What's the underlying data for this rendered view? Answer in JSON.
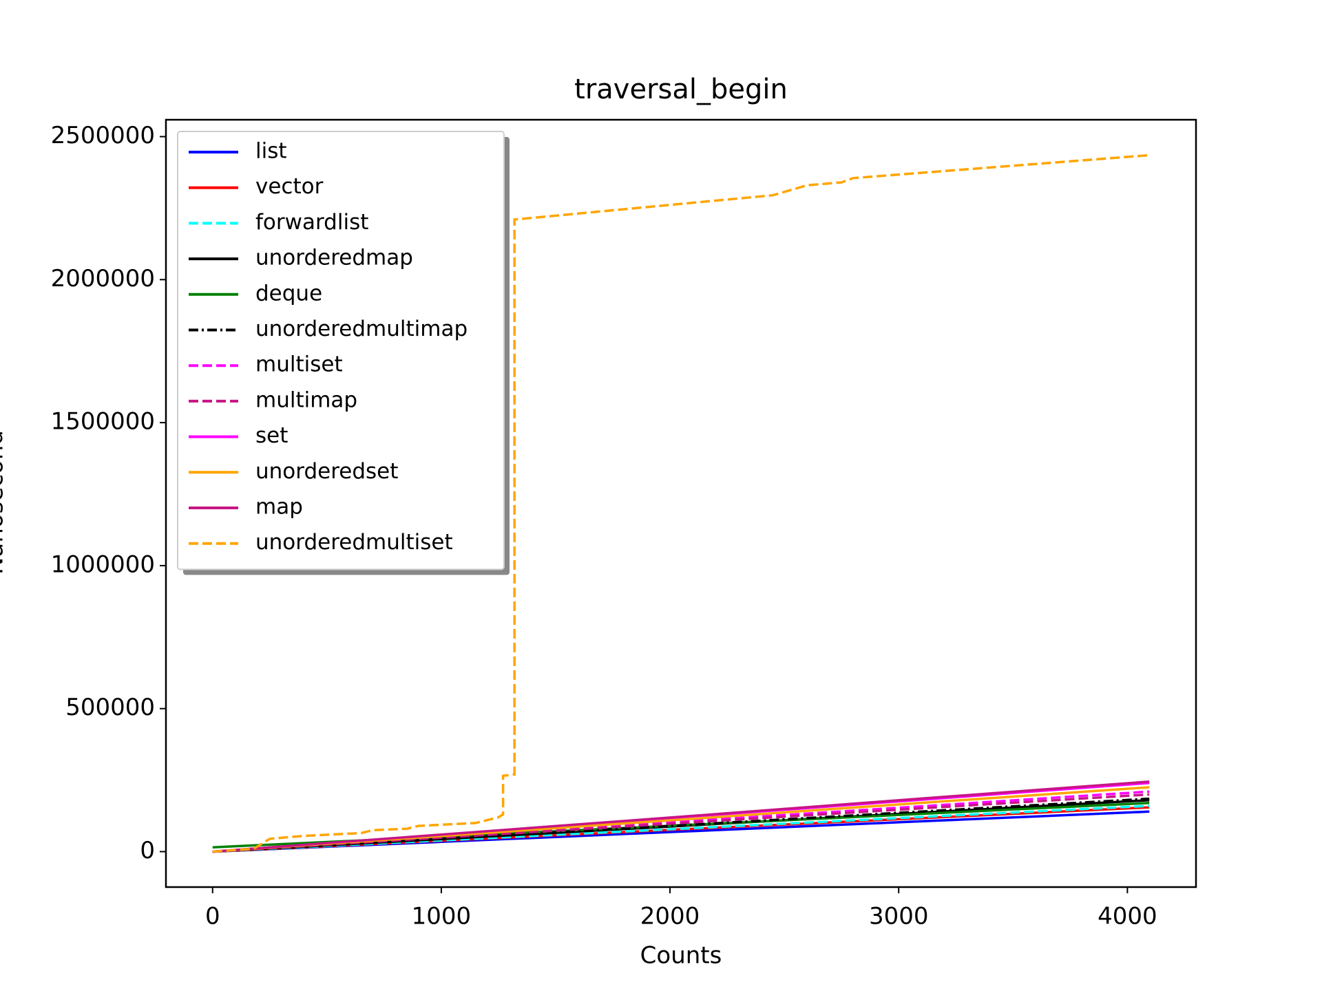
{
  "chart_data": {
    "type": "line",
    "title": "traversal_begin",
    "x_label": "Counts",
    "y_label": "Nanosecond",
    "xlim": [
      -204,
      4300
    ],
    "ylim": [
      -124000,
      2559000
    ],
    "xticks": [
      0,
      1000,
      2000,
      3000,
      4000
    ],
    "yticks": [
      0,
      500000,
      1000000,
      1500000,
      2000000,
      2500000
    ],
    "legend": "upper left",
    "series": [
      {
        "name": "list",
        "color": "#0000ff",
        "linestyle": "solid",
        "x": [
          0,
          1024,
          2048,
          3072,
          4096
        ],
        "values": [
          0,
          35000,
          70000,
          105000,
          140000
        ]
      },
      {
        "name": "vector",
        "color": "#ff0000",
        "linestyle": "solid",
        "x": [
          0,
          1024,
          2048,
          3072,
          4096
        ],
        "values": [
          0,
          39000,
          78000,
          116000,
          155000
        ]
      },
      {
        "name": "forwardlist",
        "color": "#00ffff",
        "linestyle": "dashed",
        "x": [
          0,
          1024,
          2048,
          3072,
          4096
        ],
        "values": [
          0,
          40000,
          80000,
          120000,
          160000
        ]
      },
      {
        "name": "unorderedmap",
        "color": "#000000",
        "linestyle": "solid",
        "x": [
          0,
          1024,
          2048,
          3072,
          4096
        ],
        "values": [
          0,
          45000,
          90000,
          135000,
          180000
        ]
      },
      {
        "name": "deque",
        "color": "#008000",
        "linestyle": "solid",
        "x": [
          0,
          1024,
          2048,
          3072,
          4096
        ],
        "values": [
          15000,
          53000,
          92000,
          131000,
          170000
        ]
      },
      {
        "name": "unorderedmultimap",
        "color": "#000000",
        "linestyle": "dashdot",
        "x": [
          0,
          1024,
          2048,
          3072,
          4096
        ],
        "values": [
          0,
          46000,
          92000,
          139000,
          185000
        ]
      },
      {
        "name": "multiset",
        "color": "#ff00ff",
        "linestyle": "dashed",
        "x": [
          0,
          1024,
          2048,
          3072,
          4096
        ],
        "values": [
          0,
          52000,
          105000,
          157000,
          210000
        ]
      },
      {
        "name": "multimap",
        "color": "#c71585",
        "linestyle": "dashed",
        "x": [
          0,
          1024,
          2048,
          3072,
          4096
        ],
        "values": [
          0,
          50000,
          100000,
          150000,
          200000
        ]
      },
      {
        "name": "set",
        "color": "#ff00ff",
        "linestyle": "solid",
        "x": [
          0,
          1024,
          2048,
          3072,
          4096
        ],
        "values": [
          0,
          60000,
          120000,
          180000,
          240000
        ]
      },
      {
        "name": "unorderedset",
        "color": "#ffa500",
        "linestyle": "solid",
        "x": [
          0,
          1024,
          2048,
          3072,
          4096
        ],
        "values": [
          0,
          56000,
          112000,
          169000,
          225000
        ]
      },
      {
        "name": "map",
        "color": "#c71585",
        "linestyle": "solid",
        "x": [
          0,
          1024,
          2048,
          3072,
          4096
        ],
        "values": [
          0,
          61000,
          122000,
          184000,
          245000
        ]
      },
      {
        "name": "unorderedmultiset",
        "color": "#ffa500",
        "linestyle": "dashed",
        "x": [
          0,
          180,
          250,
          400,
          650,
          700,
          850,
          900,
          1150,
          1250,
          1270,
          1270,
          1320,
          1320,
          2450,
          2600,
          2750,
          2800,
          4096
        ],
        "values": [
          0,
          10000,
          45000,
          55000,
          65000,
          75000,
          80000,
          90000,
          100000,
          120000,
          130000,
          265000,
          270000,
          2210000,
          2295000,
          2330000,
          2340000,
          2355000,
          2435000
        ]
      }
    ]
  }
}
